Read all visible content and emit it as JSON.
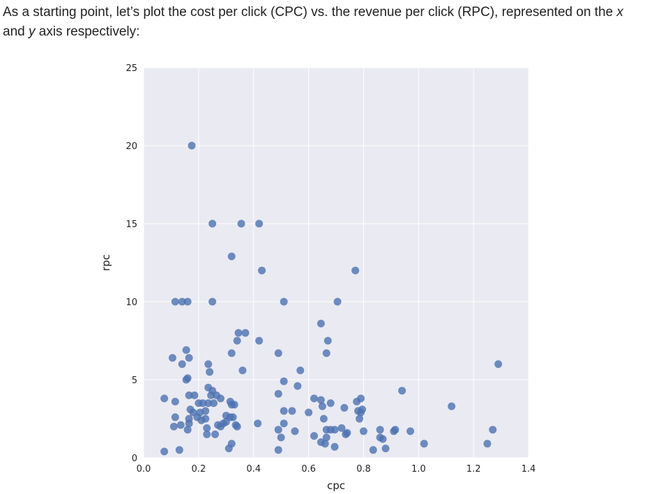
{
  "intro": {
    "part1": "As a starting point, let’s plot the cost per click (CPC) vs. the revenue per click (RPC), represented on the ",
    "x_var": "x",
    "part2": " and ",
    "y_var": "y",
    "part3": " axis respectively:"
  },
  "colors": {
    "plot_background": "#eaeaf2",
    "grid": "#ffffff",
    "marker": "#4c72b0",
    "text": "#222222"
  },
  "chart_data": {
    "type": "scatter",
    "title": "",
    "xlabel": "cpc",
    "ylabel": "rpc",
    "xlim": [
      0.0,
      1.4
    ],
    "ylim": [
      0,
      25
    ],
    "xticks": [
      "0.0",
      "0.2",
      "0.4",
      "0.6",
      "0.8",
      "1.0",
      "1.2",
      "1.4"
    ],
    "xtick_values": [
      0.0,
      0.2,
      0.4,
      0.6,
      0.8,
      1.0,
      1.2,
      1.4
    ],
    "yticks": [
      "0",
      "5",
      "10",
      "15",
      "20",
      "25"
    ],
    "ytick_values": [
      0,
      5,
      10,
      15,
      20,
      25
    ],
    "grid": true,
    "points": [
      [
        0.175,
        20.0
      ],
      [
        0.25,
        15.0
      ],
      [
        0.355,
        15.0
      ],
      [
        0.42,
        15.0
      ],
      [
        0.32,
        12.9
      ],
      [
        0.43,
        12.0
      ],
      [
        0.77,
        12.0
      ],
      [
        0.115,
        10.0
      ],
      [
        0.14,
        10.0
      ],
      [
        0.16,
        10.0
      ],
      [
        0.25,
        10.0
      ],
      [
        0.51,
        10.0
      ],
      [
        0.705,
        10.0
      ],
      [
        0.645,
        8.6
      ],
      [
        0.345,
        8.0
      ],
      [
        0.37,
        8.0
      ],
      [
        0.34,
        7.5
      ],
      [
        0.42,
        7.5
      ],
      [
        0.67,
        7.5
      ],
      [
        0.155,
        6.9
      ],
      [
        0.32,
        6.7
      ],
      [
        0.49,
        6.7
      ],
      [
        0.665,
        6.7
      ],
      [
        0.105,
        6.4
      ],
      [
        0.165,
        6.4
      ],
      [
        0.14,
        6.0
      ],
      [
        0.235,
        6.0
      ],
      [
        1.29,
        6.0
      ],
      [
        0.36,
        5.6
      ],
      [
        0.57,
        5.6
      ],
      [
        0.24,
        5.5
      ],
      [
        0.16,
        5.1
      ],
      [
        0.155,
        5.0
      ],
      [
        0.51,
        4.9
      ],
      [
        0.56,
        4.6
      ],
      [
        0.235,
        4.5
      ],
      [
        0.25,
        4.3
      ],
      [
        0.94,
        4.3
      ],
      [
        0.49,
        4.1
      ],
      [
        0.165,
        4.0
      ],
      [
        0.185,
        4.0
      ],
      [
        0.245,
        4.0
      ],
      [
        0.265,
        4.0
      ],
      [
        0.28,
        3.8
      ],
      [
        0.075,
        3.8
      ],
      [
        0.115,
        3.6
      ],
      [
        0.2,
        3.5
      ],
      [
        0.215,
        3.5
      ],
      [
        0.235,
        3.5
      ],
      [
        0.255,
        3.5
      ],
      [
        0.315,
        3.6
      ],
      [
        0.32,
        3.4
      ],
      [
        0.33,
        3.4
      ],
      [
        0.62,
        3.8
      ],
      [
        0.645,
        3.7
      ],
      [
        0.68,
        3.5
      ],
      [
        0.79,
        3.8
      ],
      [
        0.775,
        3.6
      ],
      [
        0.65,
        3.3
      ],
      [
        0.73,
        3.2
      ],
      [
        1.12,
        3.3
      ],
      [
        0.17,
        3.1
      ],
      [
        0.18,
        2.9
      ],
      [
        0.205,
        2.9
      ],
      [
        0.225,
        3.0
      ],
      [
        0.51,
        3.0
      ],
      [
        0.54,
        3.0
      ],
      [
        0.78,
        3.0
      ],
      [
        0.795,
        3.1
      ],
      [
        0.6,
        2.9
      ],
      [
        0.79,
        2.9
      ],
      [
        0.115,
        2.6
      ],
      [
        0.165,
        2.5
      ],
      [
        0.195,
        2.6
      ],
      [
        0.21,
        2.4
      ],
      [
        0.225,
        2.5
      ],
      [
        0.3,
        2.7
      ],
      [
        0.315,
        2.6
      ],
      [
        0.325,
        2.6
      ],
      [
        0.655,
        2.5
      ],
      [
        0.785,
        2.5
      ],
      [
        0.11,
        2.0
      ],
      [
        0.135,
        2.1
      ],
      [
        0.16,
        1.8
      ],
      [
        0.165,
        2.2
      ],
      [
        0.23,
        1.9
      ],
      [
        0.27,
        2.1
      ],
      [
        0.28,
        2.0
      ],
      [
        0.29,
        2.2
      ],
      [
        0.3,
        2.3
      ],
      [
        0.335,
        2.1
      ],
      [
        0.34,
        2.0
      ],
      [
        0.415,
        2.2
      ],
      [
        0.51,
        2.2
      ],
      [
        0.49,
        1.8
      ],
      [
        0.55,
        1.7
      ],
      [
        0.665,
        1.8
      ],
      [
        0.68,
        1.8
      ],
      [
        0.695,
        1.8
      ],
      [
        0.72,
        1.9
      ],
      [
        0.735,
        1.5
      ],
      [
        0.74,
        1.6
      ],
      [
        0.8,
        1.7
      ],
      [
        0.86,
        1.8
      ],
      [
        0.915,
        1.8
      ],
      [
        0.91,
        1.7
      ],
      [
        0.97,
        1.7
      ],
      [
        1.27,
        1.8
      ],
      [
        0.23,
        1.5
      ],
      [
        0.26,
        1.5
      ],
      [
        0.5,
        1.3
      ],
      [
        0.62,
        1.4
      ],
      [
        0.665,
        1.3
      ],
      [
        0.86,
        1.3
      ],
      [
        0.87,
        1.2
      ],
      [
        0.645,
        1.0
      ],
      [
        0.66,
        0.9
      ],
      [
        0.32,
        0.9
      ],
      [
        1.02,
        0.9
      ],
      [
        1.25,
        0.9
      ],
      [
        0.31,
        0.6
      ],
      [
        0.695,
        0.7
      ],
      [
        0.88,
        0.6
      ],
      [
        0.835,
        0.5
      ],
      [
        0.49,
        0.5
      ],
      [
        0.075,
        0.4
      ],
      [
        0.13,
        0.5
      ]
    ]
  }
}
